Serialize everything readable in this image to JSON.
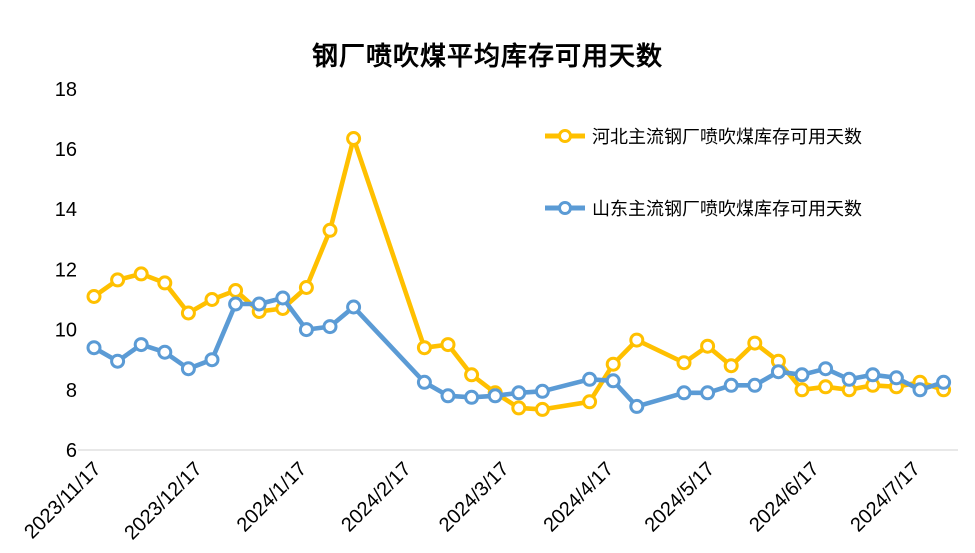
{
  "chart_data": {
    "type": "line",
    "title": "钢厂喷吹煤平均库存可用天数",
    "x": [
      "2023/11/17",
      "2023/11/24",
      "2023/12/1",
      "2023/12/8",
      "2023/12/15",
      "2023/12/22",
      "2023/12/29",
      "2024/1/5",
      "2024/1/12",
      "2024/1/19",
      "2024/1/26",
      "2024/2/2",
      "2024/2/23",
      "2024/3/1",
      "2024/3/8",
      "2024/3/15",
      "2024/3/22",
      "2024/3/29",
      "2024/4/12",
      "2024/4/19",
      "2024/4/26",
      "2024/5/10",
      "2024/5/17",
      "2024/5/24",
      "2024/5/31",
      "2024/6/7",
      "2024/6/14",
      "2024/6/21",
      "2024/6/28",
      "2024/7/5",
      "2024/7/12",
      "2024/7/19",
      "2024/7/26"
    ],
    "series": [
      {
        "name": "河北主流钢厂喷吹煤库存可用天数",
        "color": "#FFC000",
        "values": [
          11.1,
          11.65,
          11.85,
          11.55,
          10.55,
          11.0,
          11.3,
          10.6,
          10.7,
          11.4,
          13.3,
          16.35,
          9.4,
          9.5,
          8.5,
          7.9,
          7.4,
          7.35,
          7.6,
          8.85,
          9.65,
          8.9,
          9.45,
          8.8,
          9.55,
          8.95,
          8.0,
          8.1,
          8.0,
          8.15,
          8.1,
          8.25,
          8.0
        ]
      },
      {
        "name": "山东主流钢厂喷吹煤库存可用天数",
        "color": "#5B9BD5",
        "values": [
          9.4,
          8.95,
          9.5,
          9.25,
          8.7,
          9.0,
          10.85,
          10.85,
          11.05,
          10.0,
          10.1,
          10.75,
          8.25,
          7.8,
          7.75,
          7.8,
          7.9,
          7.95,
          8.35,
          8.3,
          7.45,
          7.9,
          7.9,
          8.15,
          8.15,
          8.6,
          8.5,
          8.7,
          8.35,
          8.5,
          8.4,
          8.0,
          8.25
        ]
      }
    ],
    "ylim": [
      6,
      18
    ],
    "y_ticks": [
      6,
      8,
      10,
      12,
      14,
      16,
      18
    ],
    "x_tick_labels": [
      "2023/11/17",
      "2023/12/17",
      "2024/1/17",
      "2024/2/17",
      "2024/3/17",
      "2024/4/17",
      "2024/5/17",
      "2024/6/17",
      "2024/7/17"
    ],
    "x_tick_rotation_deg": -45,
    "legend_position": "inside-top-right",
    "grid": "baseline-only",
    "baseline_color": "#D9D9D9",
    "marker": "open-circle"
  }
}
